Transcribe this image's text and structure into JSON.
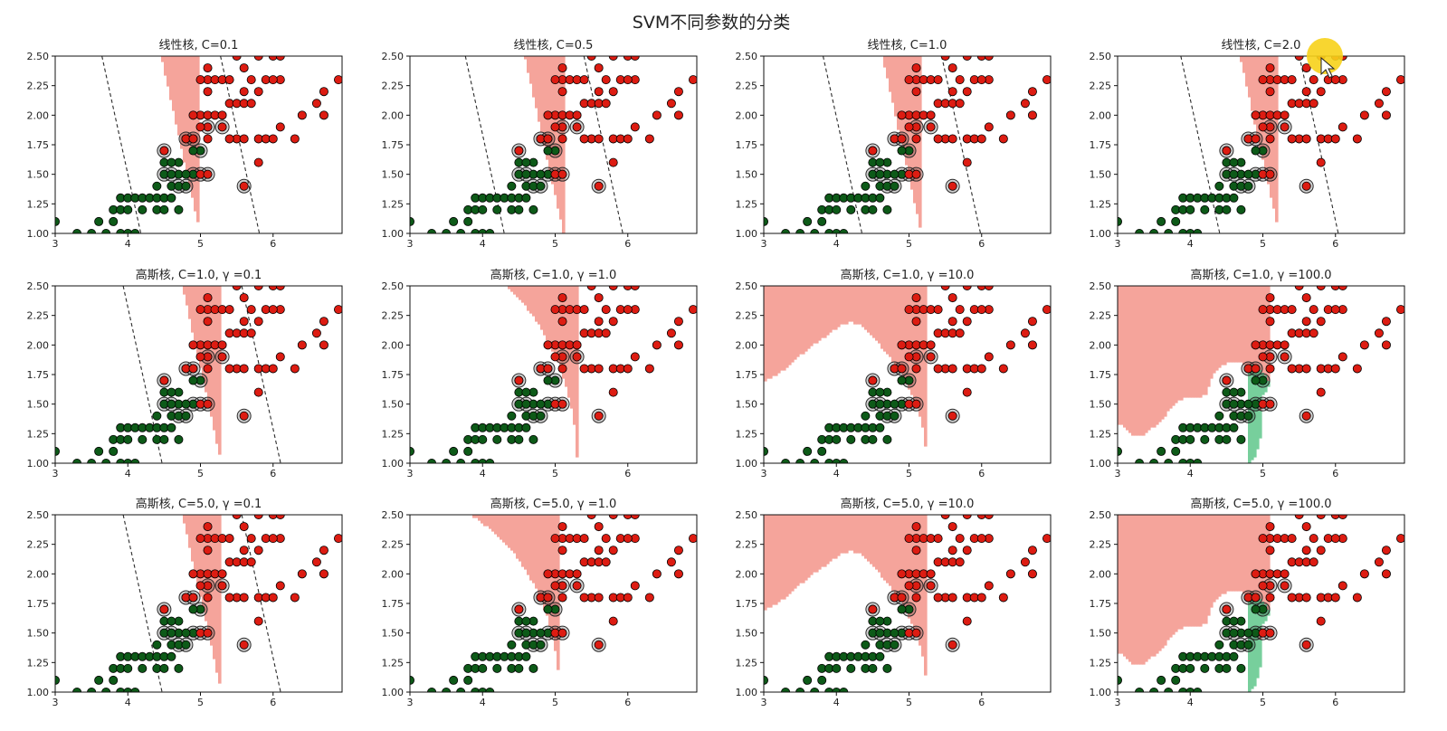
{
  "figure": {
    "title": "SVM不同参数的分类",
    "colors": {
      "region_class0": "#77cf9c",
      "region_class1": "#f5a49b",
      "points_class0": "#0d5a18",
      "points_class1": "#dd1c12",
      "support_ring": "#2a2a2a",
      "boundary_line": "#2b2b2b"
    },
    "cursor_highlight": "yellow-circle"
  },
  "axes_common": {
    "xlim": [
      3,
      6.95
    ],
    "ylim": [
      1.0,
      2.5
    ],
    "x_ticks": [
      3,
      4,
      5,
      6
    ],
    "x_tick_labels": [
      "3",
      "4",
      "5",
      "6"
    ],
    "y_ticks": [
      1.0,
      1.25,
      1.5,
      1.75,
      2.0,
      2.25,
      2.5
    ],
    "y_tick_labels": [
      "1.00",
      "1.25",
      "1.50",
      "1.75",
      "2.00",
      "2.25",
      "2.50"
    ]
  },
  "panels": [
    {
      "title": "线性核, C=0.1",
      "kernel": "linear",
      "C": 0.1
    },
    {
      "title": "线性核, C=0.5",
      "kernel": "linear",
      "C": 0.5
    },
    {
      "title": "线性核, C=1.0",
      "kernel": "linear",
      "C": 1.0
    },
    {
      "title": "线性核, C=2.0",
      "kernel": "linear",
      "C": 2.0
    },
    {
      "title": "高斯核, C=1.0, γ =0.1",
      "kernel": "rbf",
      "C": 1.0,
      "gamma": 0.1
    },
    {
      "title": "高斯核, C=1.0, γ =1.0",
      "kernel": "rbf",
      "C": 1.0,
      "gamma": 1.0
    },
    {
      "title": "高斯核, C=1.0, γ =10.0",
      "kernel": "rbf",
      "C": 1.0,
      "gamma": 10.0
    },
    {
      "title": "高斯核, C=1.0, γ =100.0",
      "kernel": "rbf",
      "C": 1.0,
      "gamma": 100.0
    },
    {
      "title": "高斯核, C=5.0, γ =0.1",
      "kernel": "rbf",
      "C": 5.0,
      "gamma": 0.1
    },
    {
      "title": "高斯核, C=5.0, γ =1.0",
      "kernel": "rbf",
      "C": 5.0,
      "gamma": 1.0
    },
    {
      "title": "高斯核, C=5.0, γ =10.0",
      "kernel": "rbf",
      "C": 5.0,
      "gamma": 10.0
    },
    {
      "title": "高斯核, C=5.0, γ =100.0",
      "kernel": "rbf",
      "C": 5.0,
      "gamma": 100.0
    }
  ],
  "chart_data": {
    "type": "scatter",
    "title": "SVM不同参数的分类",
    "xlim": [
      3,
      6.95
    ],
    "ylim": [
      1.0,
      2.5
    ],
    "grid": false,
    "series": [
      {
        "color": "#0d5a18",
        "points": [
          [
            3.0,
            1.1
          ],
          [
            3.3,
            1.0
          ],
          [
            3.5,
            1.0
          ],
          [
            3.6,
            1.1
          ],
          [
            3.7,
            1.0
          ],
          [
            3.8,
            1.1
          ],
          [
            3.8,
            1.2
          ],
          [
            3.9,
            1.0
          ],
          [
            3.9,
            1.2
          ],
          [
            3.9,
            1.3
          ],
          [
            4.0,
            1.0
          ],
          [
            4.0,
            1.2
          ],
          [
            4.0,
            1.3
          ],
          [
            4.1,
            1.0
          ],
          [
            4.1,
            1.3
          ],
          [
            4.2,
            1.2
          ],
          [
            4.2,
            1.3
          ],
          [
            4.3,
            1.3
          ],
          [
            4.4,
            1.3
          ],
          [
            4.4,
            1.4
          ],
          [
            4.5,
            1.3
          ],
          [
            4.5,
            1.5
          ],
          [
            4.6,
            1.3
          ],
          [
            4.6,
            1.4
          ],
          [
            4.7,
            1.4
          ],
          [
            4.7,
            1.5
          ],
          [
            4.4,
            1.2
          ],
          [
            4.5,
            1.7
          ],
          [
            4.8,
            1.8
          ],
          [
            4.9,
            1.5
          ],
          [
            5.0,
            1.7
          ],
          [
            4.9,
            1.7
          ],
          [
            4.8,
            1.4
          ],
          [
            4.7,
            1.2
          ],
          [
            4.6,
            1.5
          ],
          [
            4.5,
            1.6
          ],
          [
            4.9,
            1.8
          ],
          [
            4.7,
            1.6
          ],
          [
            4.5,
            1.2
          ],
          [
            4.6,
            1.6
          ],
          [
            4.8,
            1.5
          ]
        ]
      },
      {
        "color": "#dd1c12",
        "points": [
          [
            4.5,
            1.7
          ],
          [
            4.8,
            1.8
          ],
          [
            4.9,
            1.8
          ],
          [
            5.0,
            1.5
          ],
          [
            5.0,
            2.0
          ],
          [
            5.1,
            1.5
          ],
          [
            5.1,
            1.9
          ],
          [
            5.1,
            2.0
          ],
          [
            5.1,
            2.3
          ],
          [
            5.1,
            2.4
          ],
          [
            5.2,
            2.0
          ],
          [
            5.2,
            2.3
          ],
          [
            5.3,
            1.9
          ],
          [
            5.3,
            2.3
          ],
          [
            5.4,
            2.1
          ],
          [
            5.4,
            2.3
          ],
          [
            5.5,
            1.8
          ],
          [
            5.5,
            2.1
          ],
          [
            5.6,
            1.4
          ],
          [
            5.6,
            1.8
          ],
          [
            5.6,
            2.1
          ],
          [
            5.6,
            2.2
          ],
          [
            5.6,
            2.4
          ],
          [
            5.7,
            2.1
          ],
          [
            5.7,
            2.3
          ],
          [
            5.8,
            1.6
          ],
          [
            5.8,
            1.8
          ],
          [
            5.8,
            2.2
          ],
          [
            5.8,
            2.5
          ],
          [
            5.9,
            1.8
          ],
          [
            5.9,
            2.3
          ],
          [
            6.0,
            1.8
          ],
          [
            6.0,
            2.5
          ],
          [
            6.1,
            1.9
          ],
          [
            6.1,
            2.3
          ],
          [
            6.1,
            2.5
          ],
          [
            6.3,
            1.8
          ],
          [
            6.4,
            2.0
          ],
          [
            6.6,
            2.1
          ],
          [
            6.7,
            2.0
          ],
          [
            6.7,
            2.2
          ],
          [
            6.9,
            2.3
          ],
          [
            5.0,
            1.9
          ],
          [
            5.1,
            1.8
          ],
          [
            4.9,
            2.0
          ],
          [
            5.0,
            2.3
          ],
          [
            5.5,
            2.5
          ],
          [
            6.0,
            2.3
          ],
          [
            5.1,
            2.2
          ],
          [
            5.3,
            2.0
          ],
          [
            5.4,
            1.8
          ]
        ]
      }
    ]
  }
}
